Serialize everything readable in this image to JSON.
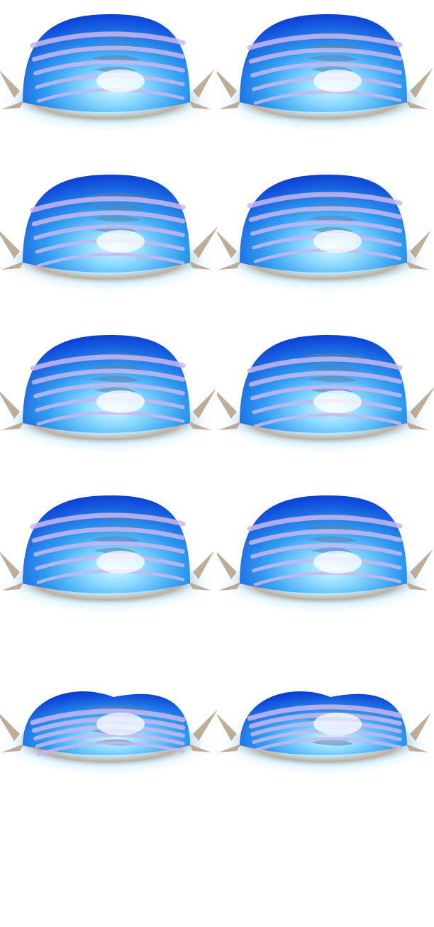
{
  "sprite_sheet": {
    "frame_count": 10,
    "columns": 2,
    "rows": 5,
    "colors": {
      "dome_core": "#d8f4ff",
      "dome_mid": "#2f9cf0",
      "dome_edge": "#0a3fd6",
      "swirl": "#c9b7f0",
      "shadow_band": "#5a7fb0",
      "ring": "#b9a48e",
      "glow": "#bfe8ff"
    },
    "frames": [
      {
        "name": "frame-1",
        "variant": "full"
      },
      {
        "name": "frame-2",
        "variant": "full"
      },
      {
        "name": "frame-3",
        "variant": "full"
      },
      {
        "name": "frame-4",
        "variant": "full"
      },
      {
        "name": "frame-5",
        "variant": "full"
      },
      {
        "name": "frame-6",
        "variant": "full"
      },
      {
        "name": "frame-7",
        "variant": "full"
      },
      {
        "name": "frame-8",
        "variant": "full"
      },
      {
        "name": "frame-9",
        "variant": "collapsing"
      },
      {
        "name": "frame-10",
        "variant": "collapsing"
      }
    ]
  }
}
